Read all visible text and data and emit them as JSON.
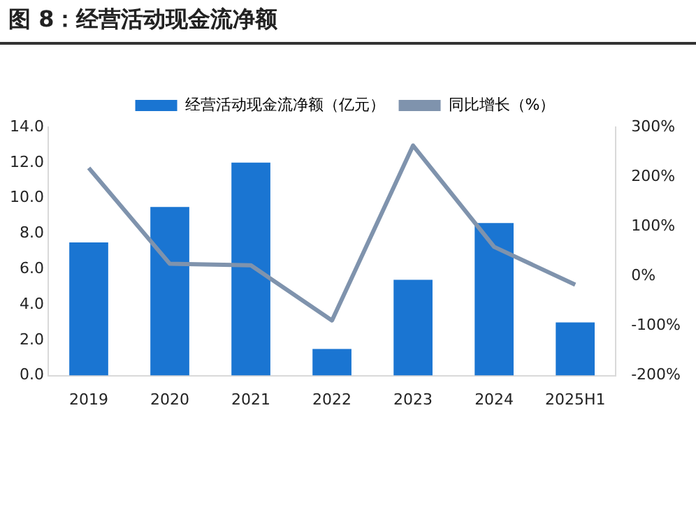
{
  "chart_data": {
    "type": "bar",
    "title": "图 8：经营活动现金流净额",
    "categories": [
      "2019",
      "2020",
      "2021",
      "2022",
      "2023",
      "2024",
      "2025H1"
    ],
    "series": [
      {
        "name": "经营活动现金流净额（亿元）",
        "color": "#1a75d2",
        "values": [
          7.5,
          9.5,
          12.0,
          1.5,
          5.4,
          8.6,
          3.0
        ]
      },
      {
        "name": "同比增长（%）",
        "type": "line",
        "axis": "y2",
        "color": "#7f93ad",
        "values": [
          218,
          25,
          22,
          -89,
          263,
          59,
          -17
        ]
      }
    ],
    "ylim": [
      0,
      14
    ],
    "yticks": [
      {
        "value": 0,
        "label": "0.0"
      },
      {
        "value": 2,
        "label": "2.0"
      },
      {
        "value": 4,
        "label": "4.0"
      },
      {
        "value": 6,
        "label": "6.0"
      },
      {
        "value": 8,
        "label": "8.0"
      },
      {
        "value": 10,
        "label": "10.0"
      },
      {
        "value": 12,
        "label": "12.0"
      },
      {
        "value": 14,
        "label": "14.0"
      }
    ],
    "y2lim": [
      -200,
      300
    ],
    "y2ticks": [
      {
        "value": -200,
        "label": "-200%"
      },
      {
        "value": -100,
        "label": "-100%"
      },
      {
        "value": 0,
        "label": "0%"
      },
      {
        "value": 100,
        "label": "100%"
      },
      {
        "value": 200,
        "label": "200%"
      },
      {
        "value": 300,
        "label": "300%"
      }
    ],
    "grid": false,
    "legend": "top",
    "marker": "none",
    "line_style": "solid"
  }
}
